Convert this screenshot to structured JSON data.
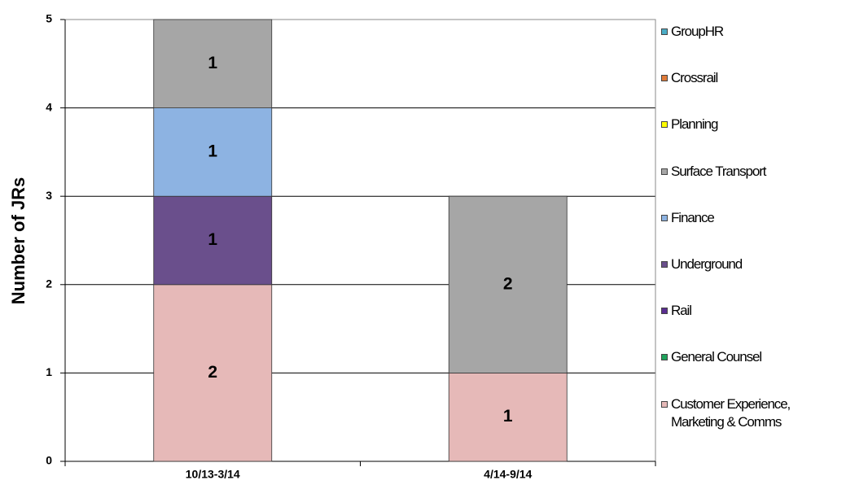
{
  "chart_data": {
    "type": "stacked_bar",
    "y_label": "Number of JRs",
    "categories": [
      "10/13-3/14",
      "4/14-9/14"
    ],
    "series": [
      {
        "name": "Customer Experience, Marketing & Comms",
        "color": "#e6b9b8",
        "values": [
          2,
          1
        ]
      },
      {
        "name": "General Counsel",
        "color": "#1fa35b",
        "values": [
          0,
          0
        ]
      },
      {
        "name": "Rail",
        "color": "#5a2d91",
        "values": [
          0,
          0
        ]
      },
      {
        "name": "Underground",
        "color": "#6a4f8c",
        "values": [
          1,
          0
        ]
      },
      {
        "name": "Finance",
        "color": "#8db3e2",
        "values": [
          1,
          0
        ]
      },
      {
        "name": "Surface Transport",
        "color": "#a6a6a6",
        "values": [
          1,
          2
        ]
      },
      {
        "name": "Planning",
        "color": "#ffff00",
        "values": [
          0,
          0
        ]
      },
      {
        "name": "Crossrail",
        "color": "#e07b39",
        "values": [
          0,
          0
        ]
      },
      {
        "name": "GroupHR",
        "color": "#4bacc6",
        "values": [
          0,
          0
        ]
      }
    ],
    "ylim": [
      0,
      5
    ],
    "yticks": [
      0,
      1,
      2,
      3,
      4,
      5
    ],
    "grid": true,
    "legend": "right"
  }
}
